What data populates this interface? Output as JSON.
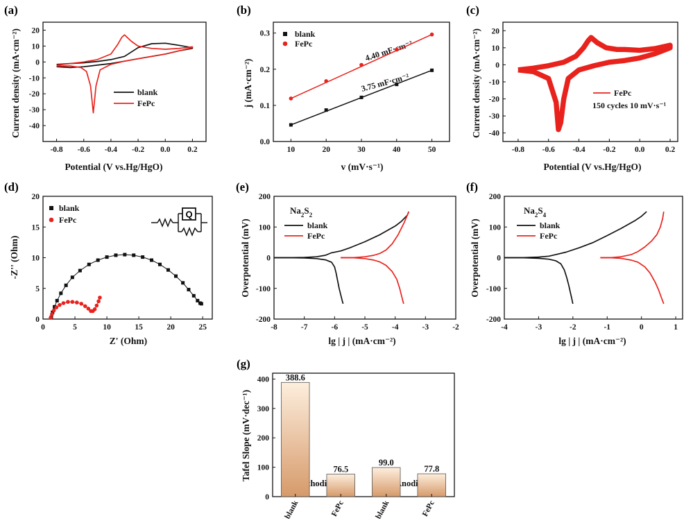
{
  "colors": {
    "blank": "#111111",
    "fepc": "#e8221c",
    "bar_top": "#fdeedd",
    "bar_bottom": "#d69a6a",
    "cathodic": "#c8742a",
    "anodic": "#1c8a9a"
  },
  "chart_data": [
    {
      "id": "a",
      "panel_label": "(a)",
      "type": "line",
      "xlabel": "Potential (V vs.Hg/HgO)",
      "ylabel": "Current density (mA·cm⁻²)",
      "xlim": [
        -0.9,
        0.3
      ],
      "ylim": [
        -50,
        25
      ],
      "xticks": [
        -0.8,
        -0.6,
        -0.4,
        -0.2,
        0.0,
        0.2
      ],
      "xtick_labels": [
        "-0.8",
        "-0.6",
        "-0.4",
        "-0.2",
        "0.0",
        "0.2"
      ],
      "yticks": [
        -40,
        -30,
        -20,
        -10,
        0,
        10,
        20
      ],
      "ytick_labels": [
        "-40",
        "-30",
        "-20",
        "-10",
        "0",
        "10",
        "20"
      ],
      "legend": [
        "blank",
        "FePc"
      ],
      "series": [
        {
          "name": "blank",
          "color": "blank",
          "x": [
            -0.8,
            -0.7,
            -0.6,
            -0.5,
            -0.4,
            -0.3,
            -0.2,
            -0.1,
            0.0,
            0.1,
            0.2,
            0.2,
            0.1,
            0.0,
            -0.1,
            -0.2,
            -0.3,
            -0.4,
            -0.5,
            -0.6,
            -0.7,
            -0.8
          ],
          "y": [
            -1.5,
            -1.0,
            -0.5,
            0.3,
            1.5,
            3.5,
            9.0,
            11.5,
            11.8,
            10.5,
            9.0,
            8.5,
            7.0,
            5.0,
            3.5,
            2.0,
            0.5,
            -1.0,
            -2.0,
            -3.0,
            -3.5,
            -3.0
          ]
        },
        {
          "name": "FePc",
          "color": "fepc",
          "x": [
            -0.8,
            -0.7,
            -0.6,
            -0.5,
            -0.4,
            -0.35,
            -0.32,
            -0.3,
            -0.25,
            -0.2,
            -0.1,
            0.0,
            0.1,
            0.2,
            0.2,
            0.1,
            0.0,
            -0.1,
            -0.2,
            -0.3,
            -0.4,
            -0.48,
            -0.51,
            -0.53,
            -0.55,
            -0.58,
            -0.62,
            -0.7,
            -0.8
          ],
          "y": [
            -2.0,
            -1.0,
            0.0,
            1.5,
            5.0,
            11.0,
            15.5,
            17.0,
            13.0,
            10.0,
            8.5,
            8.0,
            8.5,
            9.5,
            9.0,
            7.0,
            5.0,
            3.5,
            2.0,
            0.5,
            -1.5,
            -5.0,
            -15.0,
            -32.0,
            -15.0,
            -6.0,
            -3.5,
            -2.5,
            -2.5
          ]
        }
      ]
    },
    {
      "id": "b",
      "panel_label": "(b)",
      "type": "scatter",
      "xlabel": "v (mV·s⁻¹)",
      "ylabel": "j (mA·cm⁻²)",
      "xlim": [
        5,
        55
      ],
      "ylim": [
        0.0,
        0.33
      ],
      "xticks": [
        10,
        20,
        30,
        40,
        50
      ],
      "xtick_labels": [
        "10",
        "20",
        "30",
        "40",
        "50"
      ],
      "yticks": [
        0.0,
        0.1,
        0.2,
        0.3
      ],
      "ytick_labels": [
        "0.0",
        "0.1",
        "0.2",
        "0.3"
      ],
      "legend": [
        "blank",
        "FePc"
      ],
      "annotations": [
        {
          "series": "FePc",
          "text": "4.40 mF·cm⁻²"
        },
        {
          "series": "blank",
          "text": "3.75 mF·cm⁻²"
        }
      ],
      "series": [
        {
          "name": "blank",
          "color": "blank",
          "marker": "square",
          "x": [
            10,
            20,
            30,
            40,
            50
          ],
          "y": [
            0.046,
            0.087,
            0.122,
            0.158,
            0.197
          ]
        },
        {
          "name": "FePc",
          "color": "fepc",
          "marker": "circle",
          "x": [
            10,
            20,
            30,
            40,
            50
          ],
          "y": [
            0.119,
            0.167,
            0.212,
            0.254,
            0.296
          ]
        }
      ]
    },
    {
      "id": "c",
      "panel_label": "(c)",
      "type": "line",
      "xlabel": "Potential (V vs.Hg/HgO)",
      "ylabel": "Current density (mA·cm⁻²)",
      "xlim": [
        -0.9,
        0.25
      ],
      "ylim": [
        -45,
        25
      ],
      "xticks": [
        -0.8,
        -0.6,
        -0.4,
        -0.2,
        0.0,
        0.2
      ],
      "xtick_labels": [
        "-0.8",
        "-0.6",
        "-0.4",
        "-0.2",
        "0.0",
        "0.2"
      ],
      "yticks": [
        -40,
        -30,
        -20,
        -10,
        0,
        10,
        20
      ],
      "ytick_labels": [
        "-40",
        "-30",
        "-20",
        "-10",
        "0",
        "10",
        "20"
      ],
      "legend": [
        "FePc",
        "150 cycles 10 mV·s⁻¹"
      ],
      "series": [
        {
          "name": "FePc",
          "color": "fepc",
          "band": 3.0,
          "x": [
            -0.8,
            -0.7,
            -0.6,
            -0.5,
            -0.42,
            -0.37,
            -0.34,
            -0.32,
            -0.28,
            -0.22,
            -0.15,
            -0.1,
            0.0,
            0.1,
            0.2,
            0.2,
            0.1,
            0.0,
            -0.1,
            -0.2,
            -0.3,
            -0.4,
            -0.47,
            -0.5,
            -0.52,
            -0.535,
            -0.55,
            -0.6,
            -0.7,
            -0.8
          ],
          "y": [
            -3.0,
            -2.0,
            -0.5,
            1.5,
            5.0,
            10.0,
            14.0,
            16.0,
            13.0,
            10.0,
            9.0,
            9.0,
            8.5,
            9.5,
            11.5,
            10.0,
            6.5,
            4.0,
            2.5,
            1.5,
            -0.5,
            -3.0,
            -8.0,
            -20.0,
            -34.0,
            -38.0,
            -22.0,
            -8.0,
            -4.0,
            -3.0
          ]
        }
      ]
    },
    {
      "id": "d",
      "panel_label": "(d)",
      "type": "scatter",
      "xlabel": "Z' (Ohm)",
      "ylabel": "-Z'' (Ohm)",
      "xlim": [
        0,
        26.5
      ],
      "ylim": [
        0,
        20
      ],
      "xticks": [
        0,
        5,
        10,
        15,
        20,
        25
      ],
      "xtick_labels": [
        "0",
        "5",
        "10",
        "15",
        "20",
        "25"
      ],
      "yticks": [
        0,
        5,
        10,
        15,
        20
      ],
      "ytick_labels": [
        "0",
        "5",
        "10",
        "15",
        "20"
      ],
      "legend": [
        "blank",
        "FePc"
      ],
      "circuit_symbol": "Q",
      "series": [
        {
          "name": "blank",
          "color": "blank",
          "marker": "square",
          "x": [
            1.3,
            1.5,
            1.8,
            2.2,
            2.8,
            3.6,
            4.6,
            5.8,
            7.2,
            8.6,
            10.0,
            11.4,
            12.8,
            14.2,
            15.6,
            17.0,
            18.3,
            19.6,
            20.8,
            21.9,
            22.8,
            23.6,
            24.2,
            24.6,
            24.8
          ],
          "y": [
            0.3,
            1.1,
            2.0,
            3.0,
            4.2,
            5.5,
            6.8,
            7.9,
            8.9,
            9.6,
            10.1,
            10.4,
            10.5,
            10.4,
            10.1,
            9.6,
            8.9,
            8.0,
            7.0,
            5.9,
            4.8,
            3.8,
            3.0,
            2.6,
            2.5
          ]
        },
        {
          "name": "FePc",
          "color": "fepc",
          "marker": "circle",
          "x": [
            1.2,
            1.4,
            1.7,
            2.1,
            2.6,
            3.2,
            3.9,
            4.6,
            5.3,
            6.0,
            6.6,
            7.1,
            7.5,
            7.8,
            8.1,
            8.4,
            8.7,
            8.9
          ],
          "y": [
            0.2,
            0.8,
            1.4,
            1.9,
            2.3,
            2.6,
            2.8,
            2.8,
            2.7,
            2.5,
            2.1,
            1.7,
            1.3,
            1.3,
            1.6,
            2.2,
            2.9,
            3.5
          ]
        }
      ]
    },
    {
      "id": "e",
      "panel_label": "(e)",
      "type": "line",
      "xlabel": "lg | j | (mA·cm⁻²)",
      "ylabel": "Overpotential (mV)",
      "xlim": [
        -8,
        -2
      ],
      "ylim": [
        -200,
        200
      ],
      "xticks": [
        -8,
        -7,
        -6,
        -5,
        -4,
        -3,
        -2
      ],
      "xtick_labels": [
        "-8",
        "-7",
        "-6",
        "-5",
        "-4",
        "-3",
        "-2"
      ],
      "yticks": [
        -200,
        -100,
        0,
        100,
        200
      ],
      "ytick_labels": [
        "-200",
        "-100",
        "0",
        "100",
        "200"
      ],
      "species": "Na2S2",
      "species_text": "Na",
      "species_sub1": "2",
      "species_mid": "S",
      "species_sub2": "2",
      "legend": [
        "blank",
        "FePc"
      ],
      "series": [
        {
          "name": "blank",
          "color": "blank",
          "x": [
            -8.0,
            -7.5,
            -7.0,
            -6.6,
            -6.3,
            -6.1,
            -6.0,
            -5.95,
            -5.9,
            -5.85,
            -5.8,
            -5.75,
            -5.72
          ],
          "y": [
            0,
            0,
            -1,
            -3,
            -7,
            -15,
            -30,
            -50,
            -75,
            -100,
            -120,
            -140,
            -150
          ]
        },
        {
          "name": "blank",
          "color": "blank",
          "x": [
            -8.0,
            -7.5,
            -7.0,
            -6.6,
            -6.3,
            -6.1,
            -5.8,
            -5.5,
            -5.0,
            -4.5,
            -4.0,
            -3.8,
            -3.6,
            -3.55
          ],
          "y": [
            0,
            0,
            1,
            3,
            8,
            16,
            22,
            32,
            52,
            75,
            103,
            118,
            138,
            150
          ]
        },
        {
          "name": "FePc",
          "color": "fepc",
          "x": [
            -5.8,
            -5.4,
            -5.0,
            -4.7,
            -4.5,
            -4.3,
            -4.1,
            -3.95,
            -3.85,
            -3.8,
            -3.75,
            -3.72
          ],
          "y": [
            0,
            0,
            -3,
            -8,
            -14,
            -25,
            -45,
            -70,
            -100,
            -120,
            -140,
            -150
          ]
        },
        {
          "name": "FePc",
          "color": "fepc",
          "x": [
            -5.8,
            -5.4,
            -5.0,
            -4.7,
            -4.5,
            -4.3,
            -4.1,
            -3.9,
            -3.7,
            -3.6,
            -3.55
          ],
          "y": [
            0,
            0,
            3,
            8,
            14,
            25,
            45,
            75,
            115,
            138,
            150
          ]
        }
      ]
    },
    {
      "id": "f",
      "panel_label": "(f)",
      "type": "line",
      "xlabel": "lg | j | (mA·cm⁻²)",
      "ylabel": "Overpotential (mV)",
      "xlim": [
        -4,
        1.2
      ],
      "ylim": [
        -200,
        200
      ],
      "xticks": [
        -4,
        -3,
        -2,
        -1,
        0,
        1
      ],
      "xtick_labels": [
        "-4",
        "-3",
        "-2",
        "-1",
        "0",
        "1"
      ],
      "yticks": [
        -200,
        -100,
        0,
        100,
        200
      ],
      "ytick_labels": [
        "-200",
        "-100",
        "0",
        "100",
        "200"
      ],
      "species": "Na2S4",
      "species_text": "Na",
      "species_sub1": "2",
      "species_mid": "S",
      "species_sub2": "4",
      "legend": [
        "blank",
        "FePc"
      ],
      "series": [
        {
          "name": "blank",
          "color": "blank",
          "x": [
            -4.0,
            -3.5,
            -3.0,
            -2.7,
            -2.5,
            -2.35,
            -2.25,
            -2.18,
            -2.12,
            -2.07,
            -2.03,
            -2.0
          ],
          "y": [
            0,
            0,
            -2,
            -5,
            -10,
            -20,
            -40,
            -65,
            -90,
            -115,
            -135,
            -150
          ]
        },
        {
          "name": "blank",
          "color": "blank",
          "x": [
            -4.0,
            -3.5,
            -3.0,
            -2.7,
            -2.5,
            -2.2,
            -1.8,
            -1.4,
            -1.0,
            -0.6,
            -0.2,
            0.0,
            0.15
          ],
          "y": [
            0,
            0,
            2,
            5,
            10,
            18,
            33,
            50,
            72,
            95,
            120,
            135,
            150
          ]
        },
        {
          "name": "FePc",
          "color": "fepc",
          "x": [
            -1.2,
            -0.9,
            -0.6,
            -0.3,
            -0.1,
            0.1,
            0.25,
            0.4,
            0.5,
            0.58,
            0.65
          ],
          "y": [
            0,
            0,
            -2,
            -8,
            -15,
            -30,
            -50,
            -80,
            -105,
            -130,
            -150
          ]
        },
        {
          "name": "FePc",
          "color": "fepc",
          "x": [
            -1.2,
            -0.9,
            -0.6,
            -0.3,
            -0.1,
            0.1,
            0.3,
            0.45,
            0.55,
            0.62,
            0.65
          ],
          "y": [
            0,
            0,
            3,
            10,
            20,
            35,
            55,
            75,
            100,
            128,
            150
          ]
        }
      ]
    },
    {
      "id": "g",
      "panel_label": "(g)",
      "type": "bar",
      "ylabel": "Tafel Slope (mV·dec⁻¹)",
      "ylim": [
        0,
        420
      ],
      "yticks": [
        0,
        100,
        200,
        300,
        400
      ],
      "ytick_labels": [
        "0",
        "100",
        "200",
        "300",
        "400"
      ],
      "categories": [
        "blank",
        "FePc",
        "blank",
        "FePc"
      ],
      "values": [
        388.6,
        76.5,
        99.0,
        77.8
      ],
      "value_labels": [
        "388.6",
        "76.5",
        "99.0",
        "77.8"
      ],
      "groups": [
        {
          "label": "Cathodic",
          "color": "cathodic"
        },
        {
          "label": "Anodic",
          "color": "anodic"
        }
      ]
    }
  ]
}
